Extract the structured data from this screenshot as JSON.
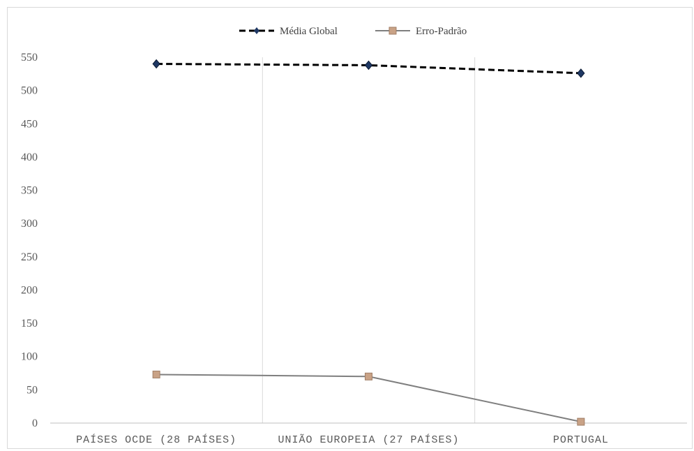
{
  "chart_data": {
    "type": "line",
    "categories": [
      "PAÍSES OCDE (28 PAÍSES)",
      "UNIÃO EUROPEIA (27 PAÍSES)",
      "PORTUGAL"
    ],
    "series": [
      {
        "name": "Média Global",
        "values": [
          540,
          538,
          526
        ],
        "color": "#000000",
        "line_style": "dashed",
        "marker": "diamond",
        "marker_color": "#1f3864"
      },
      {
        "name": "Erro-Padrão",
        "values": [
          73,
          70,
          2
        ],
        "color": "#7f7f7f",
        "line_style": "solid",
        "marker": "square",
        "marker_color": "#c9a286"
      }
    ],
    "yticks": [
      0,
      50,
      100,
      150,
      200,
      250,
      300,
      350,
      400,
      450,
      500,
      550
    ],
    "ylim": [
      0,
      550
    ],
    "legend_position": "top-center",
    "gridlines": "vertical category separators"
  }
}
